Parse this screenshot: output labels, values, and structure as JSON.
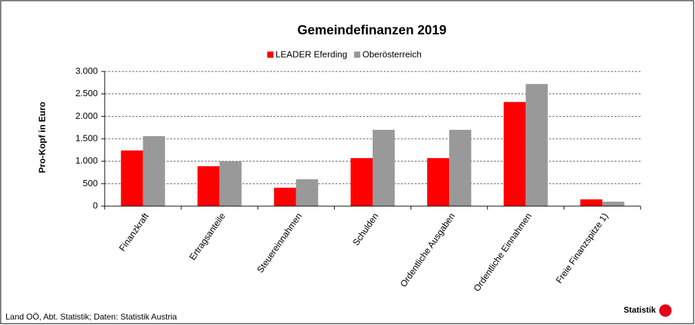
{
  "chart_data": {
    "type": "bar",
    "title": "Gemeindefinanzen 2019",
    "y_label": "Pro-Kopf in Euro",
    "categories": [
      "Finanzkraft",
      "Ertragsanteile",
      "Steuereinnahmen",
      "Schulden",
      "Ordentliche Ausgaben",
      "Ordentliche Einnahmen",
      "Freie Finanzspitze 1)"
    ],
    "series": [
      {
        "name": "LEADER Eferding",
        "color": "#ff0000",
        "values": [
          1240,
          890,
          410,
          1070,
          1070,
          2320,
          150
        ]
      },
      {
        "name": "Oberösterreich",
        "color": "#999999",
        "values": [
          1560,
          1000,
          600,
          1700,
          1700,
          2720,
          100
        ]
      }
    ],
    "ylim": [
      0,
      3000
    ],
    "yticks": [
      {
        "value": 0,
        "label": "0"
      },
      {
        "value": 500,
        "label": "500"
      },
      {
        "value": 1000,
        "label": "1.000"
      },
      {
        "value": 1500,
        "label": "1.500"
      },
      {
        "value": 2000,
        "label": "2.000"
      },
      {
        "value": 2500,
        "label": "2.500"
      },
      {
        "value": 3000,
        "label": "3.000"
      }
    ],
    "grid": true,
    "legend": "top",
    "source": "Land OÖ, Abt. Statistik; Daten: Statistik Austria",
    "logo": "Statistik"
  }
}
